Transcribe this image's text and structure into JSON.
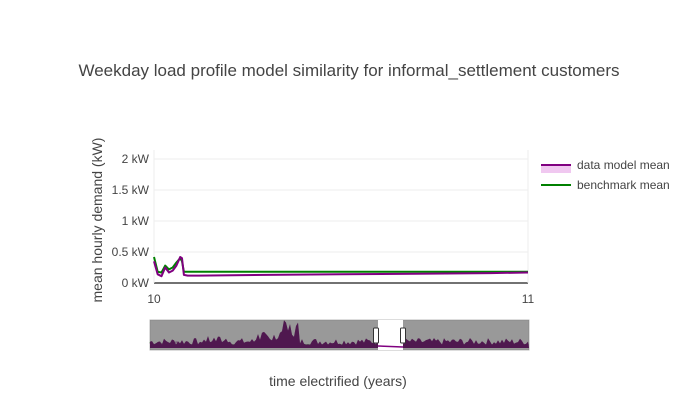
{
  "chart_data": {
    "type": "line",
    "title": "Weekday load profile model similarity for informal_settlement customers",
    "xlabel": "time electrified (years)",
    "ylabel": "mean hourly demand (kW)",
    "xlim": [
      10,
      11
    ],
    "ylim": [
      -0.05,
      2.15
    ],
    "x_ticks": [
      {
        "value": 10,
        "label": "10"
      },
      {
        "value": 11,
        "label": "11"
      }
    ],
    "y_ticks": [
      {
        "value": 0,
        "label": "0 kW"
      },
      {
        "value": 0.5,
        "label": "0.5 kW"
      },
      {
        "value": 1,
        "label": "1 kW"
      },
      {
        "value": 1.5,
        "label": "1.5 kW"
      },
      {
        "value": 2,
        "label": "2 kW"
      }
    ],
    "grid": true,
    "legend_position": "right",
    "range_slider": true,
    "series": [
      {
        "name": "data model mean",
        "color": "#800080",
        "band_color": "#f0c8f0",
        "x": [
          10.0,
          10.01,
          10.02,
          10.03,
          10.04,
          10.05,
          10.06,
          10.07,
          10.075,
          10.08,
          10.09,
          10.12,
          10.3,
          10.5,
          10.7,
          10.9,
          11.0
        ],
        "values": [
          0.35,
          0.14,
          0.11,
          0.25,
          0.17,
          0.2,
          0.28,
          0.42,
          0.4,
          0.13,
          0.12,
          0.12,
          0.13,
          0.14,
          0.15,
          0.16,
          0.17
        ]
      },
      {
        "name": "benchmark mean",
        "color": "#008000",
        "x": [
          10.0,
          10.01,
          10.02,
          10.03,
          10.04,
          10.05,
          10.06,
          10.07,
          10.075,
          10.08,
          10.09,
          11.0
        ],
        "values": [
          0.42,
          0.18,
          0.17,
          0.28,
          0.22,
          0.25,
          0.33,
          0.4,
          0.35,
          0.18,
          0.18,
          0.18
        ]
      }
    ]
  }
}
